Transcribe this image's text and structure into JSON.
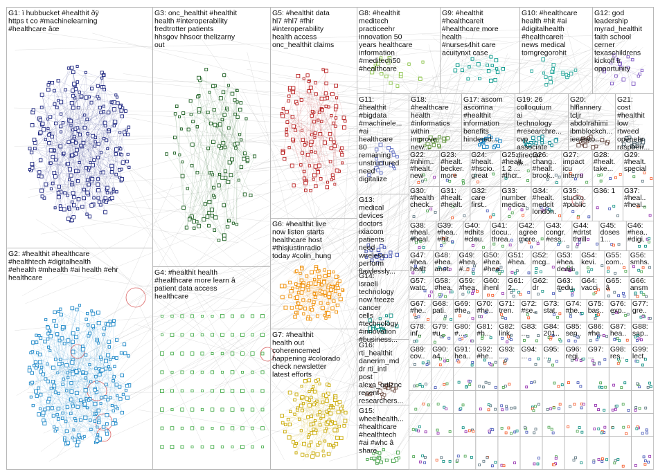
{
  "groups": [
    {
      "id": "G1",
      "label": "G1: ï hubbucket #healthit ðÿ https t co #machinelearning #healthcare âœ",
      "color": "#1a237e",
      "density": "high"
    },
    {
      "id": "G2",
      "label": "G2: #healthit #healthcare #healthtech #digitalhealth #ehealth #mhealth #ai health #ehr healthcare",
      "color": "#1e88c8",
      "density": "high"
    },
    {
      "id": "G3",
      "label": "G3: onc_healthit #healthit health #interoperability fredtrotter patients hhsgov hhsocr thelizarny out",
      "color": "#1b5e20",
      "density": "medium"
    },
    {
      "id": "G4",
      "label": "G4: #healthit health #healthcare more learn â patient data access healthcare",
      "color": "#4caf50",
      "density": "grid"
    },
    {
      "id": "G5",
      "label": "G5: #healthit data hl7 #hl7 #fhir #interoperability health access onc_healthit claims",
      "color": "#b71c1c",
      "density": "medium"
    },
    {
      "id": "G6",
      "label": "G6: #healthit live now listen starts healthcare host #thisjustinradio today #colin_hung",
      "color": "#ef8c00",
      "density": "medium"
    },
    {
      "id": "G7",
      "label": "G7: #healthit health out coherencemed happening #colorado check newsletter latest efforts",
      "color": "#c8a800",
      "density": "medium"
    },
    {
      "id": "G8",
      "label": "G8: #healthit meditech practiceehr innovation 50 years healthcare information #meditech50 #healthcare",
      "color": "#8bc34a",
      "density": "small"
    },
    {
      "id": "G9",
      "label": "G9: #healthit #healthcareit #healthcare more health #nurses4hit care acuitynxt case",
      "color": "#009688",
      "density": "small"
    },
    {
      "id": "G10",
      "label": "G10: #healthcare health #hit #ai #digitalhealth #healthcareit news medical tomgregorohit",
      "color": "#26a69a",
      "density": "small"
    },
    {
      "id": "G11",
      "label": "G11: #healthit #bigdata #machinele... #ai healthcare 80 remaining unstructured need digitalize",
      "color": "#5c6bc0",
      "density": "small"
    },
    {
      "id": "G12",
      "label": "G12: god leadership myrad_healthit faith school cerner texaschildrens kickoff lr opportunity",
      "color": "#7e57c2",
      "density": "small"
    },
    {
      "id": "G13",
      "label": "G13: medical devices doctors ixiacom patients need wireless perform flawlessly...",
      "color": "#3949ab",
      "density": "small"
    },
    {
      "id": "G14",
      "label": "G14: israeli technology now freeze cancer cells #technology #innovation #business...",
      "color": "#00897b",
      "density": "small"
    },
    {
      "id": "G15",
      "label": "G15: wheelhealth... #healthcare #healthtech #ai #whc â share",
      "color": "#43a047",
      "density": "small"
    },
    {
      "id": "G16",
      "label": "G16: rti_healthit danerim_md dr rti_intl post alexa_ortiznc recent researchers...",
      "color": "#6d4c41",
      "density": "small"
    },
    {
      "id": "G17",
      "label": "G17: ascom ascomna #healthit information benefits hindered...",
      "color": "#0277bd",
      "density": "small"
    },
    {
      "id": "G18",
      "label": "G18: #healthcare health #informatics within improve new...",
      "color": "#558b2f",
      "density": "small"
    },
    {
      "id": "G19",
      "label": "G19: 26 colloquium ai technology #researchre... cvp associate director dr...",
      "color": "#00838f",
      "density": "small"
    },
    {
      "id": "G20",
      "label": "G20: hlflannery tcljr abdolrahimi ibmblockch... ieeeisto...",
      "color": "#5d4037",
      "density": "small"
    },
    {
      "id": "G21",
      "label": "G21: cost #healthit low rtweed openehr raspberr...",
      "color": "#455a64",
      "density": "small"
    }
  ],
  "small_groups": [
    {
      "id": "G22",
      "label": "G22: #nhim... #healt... new #healt..."
    },
    {
      "id": "G23",
      "label": "G23: #healt... becker... more #hit..."
    },
    {
      "id": "G24",
      "label": "G24: #healt... #hscio... great #inter..."
    },
    {
      "id": "G25",
      "label": "G25: #healt... 1 2 ... #lhcr..."
    },
    {
      "id": "G26",
      "label": "G26: chang... #healt... brook..."
    },
    {
      "id": "G27",
      "label": "G27: impact icu interru..."
    },
    {
      "id": "G28",
      "label": "G28: #healt... take..."
    },
    {
      "id": "G29",
      "label": "G29: #healt... special..."
    },
    {
      "id": "G30",
      "label": "G30: #healthit check..."
    },
    {
      "id": "G31",
      "label": "G31: #healt... #healt..."
    },
    {
      "id": "G32",
      "label": "G32: care first..."
    },
    {
      "id": "G33",
      "label": "G33: number medica..."
    },
    {
      "id": "G34",
      "label": "G34: #healt... medcit london..."
    },
    {
      "id": "G35",
      "label": "G35: stucko... #public..."
    },
    {
      "id": "G36",
      "label": "G36: 1"
    },
    {
      "id": "G37",
      "label": "G37: #heal... #heal..."
    },
    {
      "id": "G38",
      "label": "G38: #heal... #heal..."
    },
    {
      "id": "G39",
      "label": "G39: #hea... #hit..."
    },
    {
      "id": "G40",
      "label": "G40: #dhits... #clou..."
    },
    {
      "id": "G41",
      "label": "G41: docu... threa..."
    },
    {
      "id": "G42",
      "label": "G42: agree more..."
    },
    {
      "id": "G43",
      "label": "G43: congr... #ess..."
    },
    {
      "id": "G44",
      "label": "G44: #drtst... thrille..."
    },
    {
      "id": "G45",
      "label": "G45: doses 1..."
    },
    {
      "id": "G46",
      "label": "G46: #hea... #digi..."
    },
    {
      "id": "G47",
      "label": "G47: #hea... healt..."
    },
    {
      "id": "G48",
      "label": "G48: #hea... anot..."
    },
    {
      "id": "G49",
      "label": "G49: #hea... #..."
    },
    {
      "id": "G50",
      "label": "G50: #hea... #hea..."
    },
    {
      "id": "G51",
      "label": "G51: #hea..."
    },
    {
      "id": "G52",
      "label": "G52: mcg..."
    },
    {
      "id": "G53",
      "label": "G53: #hea... dead..."
    },
    {
      "id": "G54",
      "label": "G54: kevi..."
    },
    {
      "id": "G55",
      "label": "G55: com..."
    },
    {
      "id": "G56",
      "label": "G56: smhs..."
    },
    {
      "id": "G57",
      "label": "G57: watc..."
    },
    {
      "id": "G58",
      "label": "G58: #hea..."
    },
    {
      "id": "G59",
      "label": "G59: #hea... #hea..."
    },
    {
      "id": "G60",
      "label": "G60: ihenl..."
    },
    {
      "id": "G61",
      "label": "G61: 2..."
    },
    {
      "id": "G62",
      "label": "G62: dr sept..."
    },
    {
      "id": "G63",
      "label": "G63: #edu..."
    },
    {
      "id": "G64",
      "label": "G64: vacci..."
    },
    {
      "id": "G65",
      "label": "G65: â oeth..."
    },
    {
      "id": "G66",
      "label": "G66: ansm ouvr..."
    },
    {
      "id": "G67",
      "label": "G67: #he..."
    },
    {
      "id": "G68",
      "label": "G68: pati..."
    },
    {
      "id": "G69",
      "label": "G69: #he..."
    },
    {
      "id": "G70",
      "label": "G70: #he..."
    },
    {
      "id": "G71",
      "label": "G71: tren..."
    },
    {
      "id": "G72",
      "label": "G72: #se..."
    },
    {
      "id": "G73",
      "label": "G73: stat..."
    },
    {
      "id": "G74",
      "label": "G74: #he..."
    },
    {
      "id": "G75",
      "label": "G75: bas..."
    },
    {
      "id": "G76",
      "label": "G76: exp..."
    },
    {
      "id": "G77",
      "label": "G77: gre..."
    },
    {
      "id": "G78",
      "label": "G78: inf..."
    },
    {
      "id": "G79",
      "label": "G79: #u..."
    },
    {
      "id": "G80",
      "label": "G80: #..."
    },
    {
      "id": "G81",
      "label": "G81: #h..."
    },
    {
      "id": "G82",
      "label": "G82: link..."
    },
    {
      "id": "G83",
      "label": "G83: ..."
    },
    {
      "id": "G84",
      "label": "G84: 201..."
    },
    {
      "id": "G85",
      "label": "G85: sen..."
    },
    {
      "id": "G86",
      "label": "G86: #he..."
    },
    {
      "id": "G87",
      "label": "G87: hea..."
    },
    {
      "id": "G88",
      "label": "G88: sap..."
    },
    {
      "id": "G89",
      "label": "G89: cov..."
    },
    {
      "id": "G90",
      "label": "G90: a4..."
    },
    {
      "id": "G91",
      "label": "G91: hea..."
    },
    {
      "id": "G92",
      "label": "G92: #he..."
    },
    {
      "id": "G93",
      "label": "G93: ..."
    },
    {
      "id": "G94",
      "label": "G94: ..."
    },
    {
      "id": "G95",
      "label": "G95: ..."
    },
    {
      "id": "G96",
      "label": "G96: regi..."
    },
    {
      "id": "G97",
      "label": "G97: ..."
    },
    {
      "id": "G98",
      "label": "G98: res..."
    },
    {
      "id": "G99",
      "label": "G99: lect..."
    }
  ],
  "style": {
    "panel_border": "#b8b8b8",
    "edge_color": "#9a9a9a",
    "red_edge": "#cc2222",
    "background": "#ffffff"
  }
}
